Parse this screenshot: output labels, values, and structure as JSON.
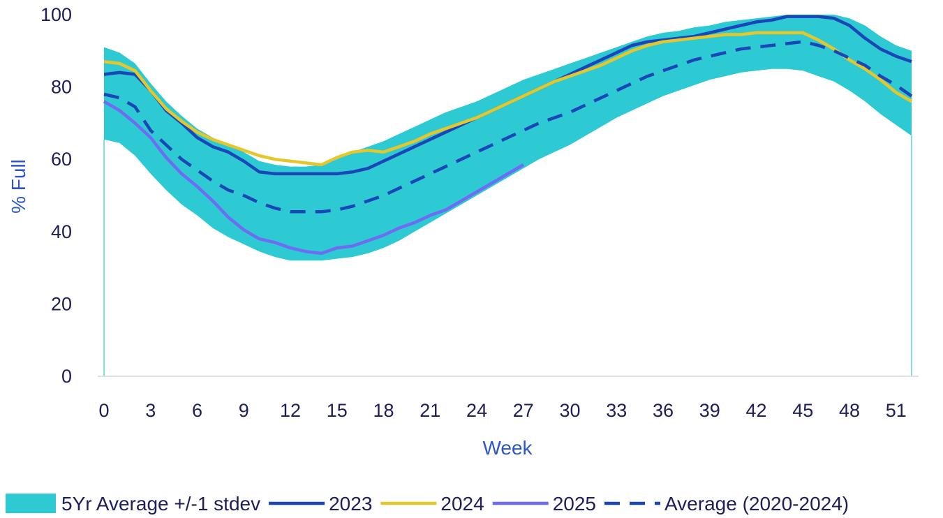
{
  "chart_data": {
    "type": "line",
    "xlabel": "Week",
    "ylabel": "% Full",
    "xlim": [
      0,
      52
    ],
    "ylim": [
      0,
      100
    ],
    "x_ticks": [
      0,
      3,
      6,
      9,
      12,
      15,
      18,
      21,
      24,
      27,
      30,
      33,
      36,
      39,
      42,
      45,
      48,
      51
    ],
    "y_ticks": [
      0,
      20,
      40,
      60,
      80,
      100
    ],
    "legend_position": "bottom",
    "band": {
      "name": "5Yr Average +/-1 stdev",
      "color": "#2ecad3",
      "x": [
        0,
        1,
        2,
        3,
        4,
        5,
        6,
        7,
        8,
        9,
        10,
        11,
        12,
        13,
        14,
        15,
        16,
        17,
        18,
        19,
        20,
        21,
        22,
        23,
        24,
        25,
        26,
        27,
        28,
        29,
        30,
        31,
        32,
        33,
        34,
        35,
        36,
        37,
        38,
        39,
        40,
        41,
        42,
        43,
        44,
        45,
        46,
        47,
        48,
        49,
        50,
        51,
        52
      ],
      "upper": [
        91,
        89.5,
        86.5,
        81,
        76,
        72,
        68.5,
        66,
        64,
        62,
        59.5,
        58.5,
        58,
        58,
        58.5,
        60,
        62,
        63.5,
        65,
        67,
        69,
        71,
        73,
        74.5,
        76,
        78,
        80,
        82,
        83.5,
        85,
        86.5,
        88,
        89.5,
        91,
        92.5,
        94,
        95,
        95.5,
        96.5,
        97,
        98,
        98.5,
        99,
        99.5,
        100,
        100,
        100,
        100,
        99,
        97,
        94,
        91.5,
        90
      ],
      "lower": [
        65.5,
        64.5,
        61,
        56,
        51.5,
        47.5,
        44.5,
        41,
        38.5,
        36.5,
        34.5,
        33,
        32,
        32,
        32,
        32.5,
        33,
        34,
        35.5,
        37.5,
        40,
        42.5,
        45,
        47.5,
        50,
        52.5,
        55,
        57.5,
        60,
        62,
        64,
        66.5,
        69,
        71.5,
        73.5,
        75.5,
        77.5,
        79,
        80.5,
        82,
        83,
        84,
        84.5,
        85,
        85,
        84.5,
        83,
        81.5,
        79,
        76,
        72.5,
        69.5,
        66.5
      ]
    },
    "series": [
      {
        "name": "2023",
        "color": "#1a47b8",
        "dash": "solid",
        "x": [
          0,
          1,
          2,
          3,
          4,
          5,
          6,
          7,
          8,
          9,
          10,
          11,
          12,
          13,
          14,
          15,
          16,
          17,
          18,
          19,
          20,
          21,
          22,
          23,
          24,
          25,
          26,
          27,
          28,
          29,
          30,
          31,
          32,
          33,
          34,
          35,
          36,
          37,
          38,
          39,
          40,
          41,
          42,
          43,
          44,
          45,
          46,
          47,
          48,
          49,
          50,
          51,
          52
        ],
        "values": [
          83.5,
          84,
          83.5,
          79,
          73.5,
          70,
          66,
          63.5,
          62,
          59.5,
          56.5,
          56,
          56,
          56,
          56,
          56,
          56.5,
          57.5,
          59.5,
          61.5,
          63.5,
          65.5,
          67.5,
          69.5,
          71.5,
          73.5,
          75.5,
          77.5,
          79.5,
          81.5,
          83.5,
          85.5,
          87.5,
          89.5,
          91.5,
          92.5,
          93,
          93.5,
          94,
          95,
          96,
          97,
          98,
          98.5,
          99.5,
          99.5,
          99.5,
          99,
          97,
          93.5,
          90.5,
          88.5,
          87
        ]
      },
      {
        "name": "2024",
        "color": "#e3c72d",
        "dash": "solid",
        "x": [
          0,
          1,
          2,
          3,
          4,
          5,
          6,
          7,
          8,
          9,
          10,
          11,
          12,
          13,
          14,
          15,
          16,
          17,
          18,
          19,
          20,
          21,
          22,
          23,
          24,
          25,
          26,
          27,
          28,
          29,
          30,
          31,
          32,
          33,
          34,
          35,
          36,
          37,
          38,
          39,
          40,
          41,
          42,
          43,
          44,
          45,
          46,
          47,
          48,
          49,
          50,
          51,
          52
        ],
        "values": [
          87,
          86.5,
          84.5,
          79,
          74,
          70.5,
          67.5,
          65.5,
          64,
          62.5,
          61,
          60,
          59.5,
          59,
          58.5,
          60.5,
          62,
          62.5,
          62,
          63.5,
          65,
          67,
          68.5,
          70,
          71.5,
          73.5,
          75.5,
          77.5,
          79.5,
          81.5,
          83,
          84.5,
          86,
          88,
          90,
          91.5,
          92.5,
          93,
          93.5,
          94,
          94.5,
          94.5,
          95,
          95,
          95,
          95,
          93,
          90.5,
          87.5,
          85,
          82,
          78.5,
          76
        ]
      },
      {
        "name": "2025",
        "color": "#6e6cf2",
        "dash": "solid",
        "x": [
          0,
          1,
          2,
          3,
          4,
          5,
          6,
          7,
          8,
          9,
          10,
          11,
          12,
          13,
          14,
          15,
          16,
          17,
          18,
          19,
          20,
          21,
          22,
          23,
          24,
          25,
          26,
          27
        ],
        "values": [
          76,
          73.5,
          70,
          66,
          60.5,
          56,
          52.5,
          48.5,
          44,
          40.5,
          38,
          37,
          35.5,
          34.5,
          34,
          35.5,
          36,
          37.5,
          39,
          41,
          42.5,
          44.5,
          46,
          48.5,
          51,
          53.5,
          56,
          58.5
        ]
      },
      {
        "name": "Average (2020-2024)",
        "color": "#1a47b8",
        "dash": "dashed",
        "x": [
          0,
          1,
          2,
          3,
          4,
          5,
          6,
          7,
          8,
          9,
          10,
          11,
          12,
          13,
          14,
          15,
          16,
          17,
          18,
          19,
          20,
          21,
          22,
          23,
          24,
          25,
          26,
          27,
          28,
          29,
          30,
          31,
          32,
          33,
          34,
          35,
          36,
          37,
          38,
          39,
          40,
          41,
          42,
          43,
          44,
          45,
          46,
          47,
          48,
          49,
          50,
          51,
          52
        ],
        "values": [
          78,
          77,
          74.5,
          68,
          64,
          60,
          57,
          54,
          51.5,
          50,
          48,
          46.5,
          45.5,
          45.5,
          45.5,
          46,
          47,
          48.5,
          50,
          52,
          54,
          56,
          58,
          60,
          62,
          64,
          66,
          68,
          70,
          71.5,
          73,
          75,
          77,
          79,
          81,
          83,
          84.5,
          86,
          87.5,
          88.5,
          89.5,
          90.5,
          91,
          91.5,
          92,
          92.5,
          91.5,
          90,
          88,
          86,
          83,
          80.5,
          77.5
        ]
      }
    ]
  }
}
